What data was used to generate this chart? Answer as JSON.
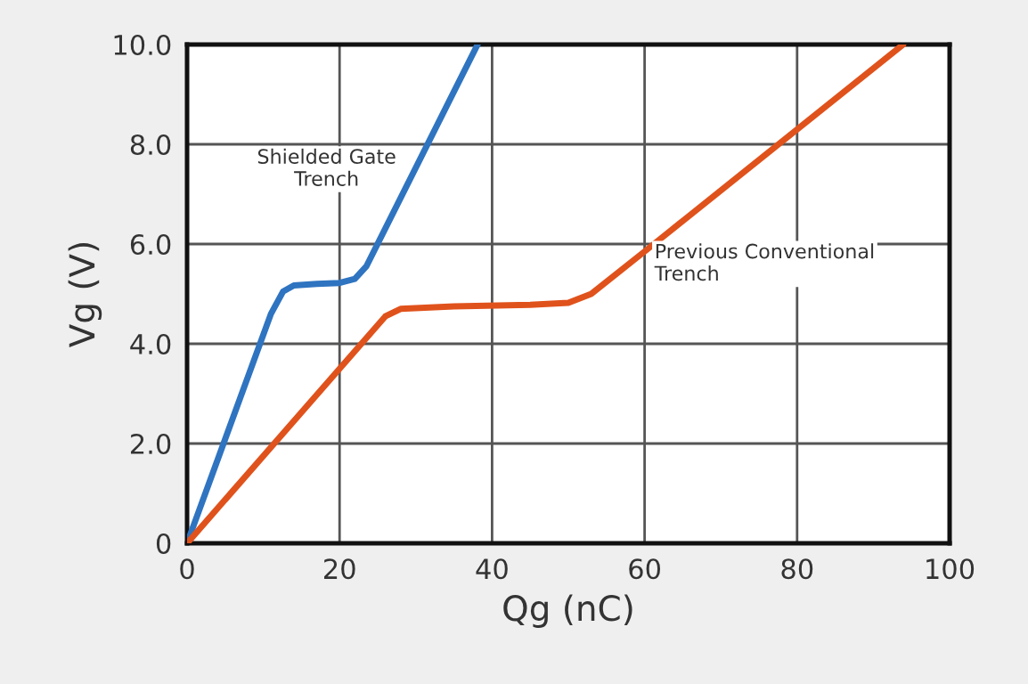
{
  "chart_data": {
    "type": "line",
    "xlabel": "Qg (nC)",
    "ylabel": "Vg (V)",
    "xlim": [
      0,
      100
    ],
    "ylim": [
      0,
      10
    ],
    "xticks": [
      0,
      20,
      40,
      60,
      80,
      100
    ],
    "yticks": [
      0,
      {
        "value": 2,
        "label": "2.0"
      },
      {
        "value": 4,
        "label": "4.0"
      },
      {
        "value": 6,
        "label": "6.0"
      },
      {
        "value": 8,
        "label": "8.0"
      },
      {
        "value": 10,
        "label": "10.0"
      }
    ],
    "grid": true,
    "line_style": "solid",
    "marker": "none",
    "series": [
      {
        "color": "#2f74c0",
        "x": [
          0,
          11,
          12.6,
          14,
          17,
          20,
          22,
          23.5,
          38.1
        ],
        "values": [
          0,
          4.6,
          5.05,
          5.17,
          5.2,
          5.22,
          5.3,
          5.55,
          10
        ]
      },
      {
        "color": "#e0521c",
        "x": [
          0,
          20,
          26,
          28,
          35,
          45,
          50,
          53,
          60,
          93.9
        ],
        "values": [
          0,
          3.5,
          4.55,
          4.7,
          4.75,
          4.78,
          4.82,
          5.0,
          5.85,
          10
        ]
      }
    ],
    "annotations": [
      "Shielded Gate\nTrench",
      "Previous Conventional\nTrench"
    ]
  }
}
